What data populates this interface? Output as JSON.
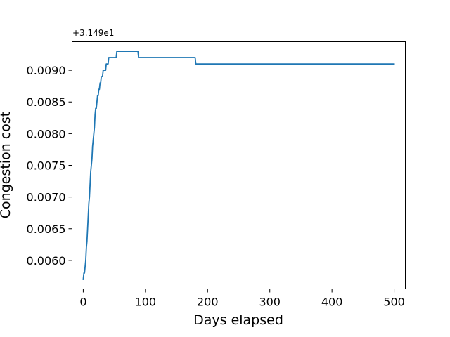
{
  "chart_data": {
    "type": "line",
    "title": "",
    "xlabel": "Days elapsed",
    "ylabel": "Congestion cost",
    "y_offset_text": "+3.149e1",
    "y_offset_value": 31.49,
    "xlim": [
      -18,
      518
    ],
    "ylim": [
      0.00555,
      0.00945
    ],
    "xticks": [
      0,
      100,
      200,
      300,
      400,
      500
    ],
    "yticks": [
      0.006,
      0.0065,
      0.007,
      0.0075,
      0.008,
      0.0085,
      0.009
    ],
    "ytick_labels": [
      "0.0060",
      "0.0065",
      "0.0070",
      "0.0075",
      "0.0080",
      "0.0085",
      "0.0090"
    ],
    "grid": false,
    "series": [
      {
        "color": "#1f77b4",
        "x": [
          0,
          1,
          1,
          2,
          3,
          4,
          5,
          6,
          7,
          8,
          9,
          10,
          11,
          12,
          13,
          14,
          15,
          16,
          17,
          18,
          19,
          20,
          21,
          22,
          23,
          24,
          25,
          26,
          27,
          28,
          29,
          30,
          31,
          32,
          33,
          34,
          35,
          36,
          37,
          38,
          39,
          40,
          41,
          42,
          43,
          44,
          45,
          46,
          47,
          48,
          49,
          50,
          51,
          52,
          53,
          54,
          55,
          56,
          57,
          88,
          89,
          180,
          181,
          500
        ],
        "y": [
          0.0057,
          0.0058,
          0.0058,
          0.0058,
          0.0059,
          0.006,
          0.0062,
          0.0063,
          0.0065,
          0.0067,
          0.0069,
          0.007,
          0.0072,
          0.0074,
          0.0075,
          0.0076,
          0.0078,
          0.0079,
          0.008,
          0.0081,
          0.0083,
          0.0084,
          0.0084,
          0.0085,
          0.0086,
          0.0086,
          0.0087,
          0.0087,
          0.0088,
          0.0088,
          0.0089,
          0.0089,
          0.0089,
          0.009,
          0.009,
          0.009,
          0.009,
          0.009,
          0.0091,
          0.0091,
          0.0091,
          0.0091,
          0.0092,
          0.0092,
          0.0092,
          0.0092,
          0.0092,
          0.0092,
          0.0092,
          0.0092,
          0.0092,
          0.0092,
          0.0092,
          0.0092,
          0.0092,
          0.0093,
          0.0093,
          0.0093,
          0.0093,
          0.0093,
          0.0092,
          0.0092,
          0.0091,
          0.0091
        ]
      }
    ]
  }
}
